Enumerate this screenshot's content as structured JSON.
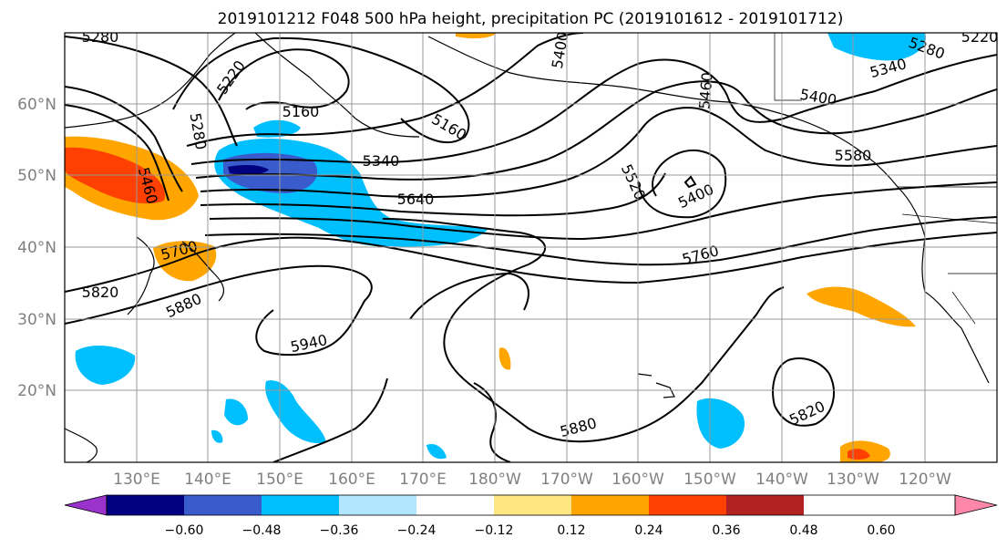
{
  "title": "2019101212 F048 500 hPa height, precipitation PC (2019101612 - 2019101712)",
  "lat_labels": [
    "60°N",
    "50°N",
    "40°N",
    "30°N",
    "20°N"
  ],
  "lon_labels": [
    "130°E",
    "140°E",
    "150°E",
    "160°E",
    "170°E",
    "180°W",
    "170°W",
    "160°W",
    "150°W",
    "140°W",
    "130°W",
    "120°W"
  ],
  "contour_labels": [
    "5280",
    "5220",
    "5280",
    "5160",
    "5160",
    "5400",
    "5460",
    "5280",
    "5340",
    "5460",
    "5340",
    "5400",
    "5520",
    "5400",
    "5580",
    "5640",
    "5700",
    "5760",
    "5820",
    "5880",
    "5940",
    "5880",
    "5820",
    "5220"
  ],
  "colorbar": {
    "ticks": [
      "−0.60",
      "−0.48",
      "−0.36",
      "−0.24",
      "−0.12",
      "0.12",
      "0.24",
      "0.36",
      "0.48",
      "0.60"
    ],
    "colors": [
      "#9933cc",
      "#000080",
      "#3a5bcc",
      "#00bfff",
      "#b3e5ff",
      "#ffffff",
      "#ffe680",
      "#ffa500",
      "#ff4000",
      "#b22222",
      "#ff88aa"
    ]
  }
}
